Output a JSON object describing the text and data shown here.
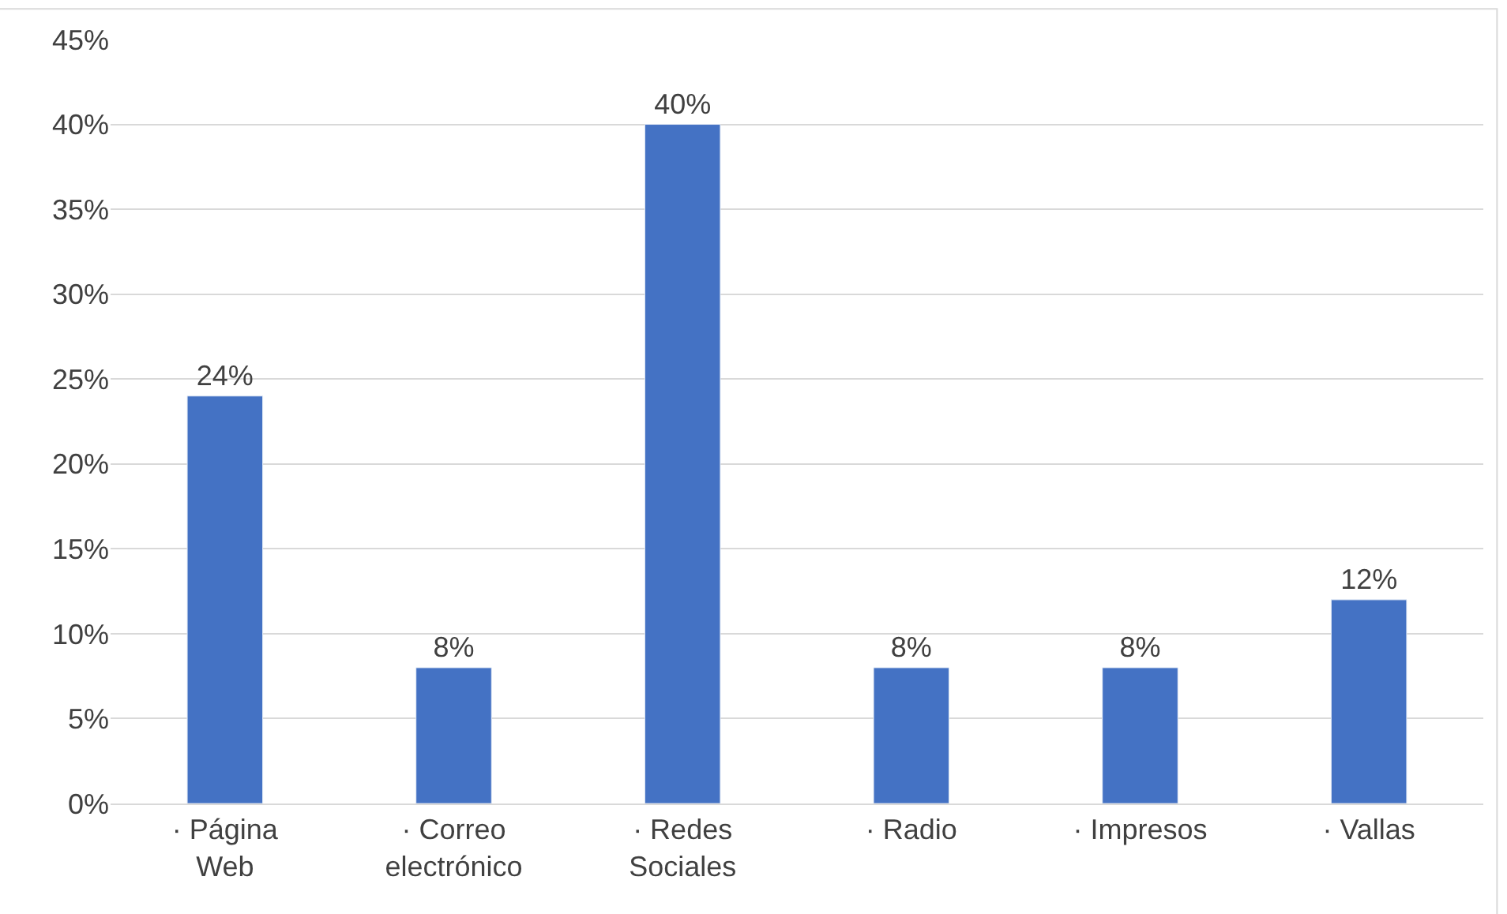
{
  "chart_data": {
    "type": "bar",
    "categories": [
      "· Página Web",
      "· Correo electrónico",
      "· Redes Sociales",
      "· Radio",
      "· Impresos",
      "· Vallas"
    ],
    "values": [
      24,
      8,
      40,
      8,
      8,
      12
    ],
    "value_labels": [
      "24%",
      "8%",
      "40%",
      "8%",
      "8%",
      "12%"
    ],
    "color": "#4472c4",
    "ylim": [
      0,
      45
    ],
    "yticks": [
      {
        "value": 0,
        "label": "0%"
      },
      {
        "value": 5,
        "label": "5%"
      },
      {
        "value": 10,
        "label": "10%"
      },
      {
        "value": 15,
        "label": "15%"
      },
      {
        "value": 20,
        "label": "20%"
      },
      {
        "value": 25,
        "label": "25%"
      },
      {
        "value": 30,
        "label": "30%"
      },
      {
        "value": 35,
        "label": "35%"
      },
      {
        "value": 40,
        "label": "40%"
      },
      {
        "value": 45,
        "label": "45%"
      }
    ],
    "grid": "y"
  }
}
